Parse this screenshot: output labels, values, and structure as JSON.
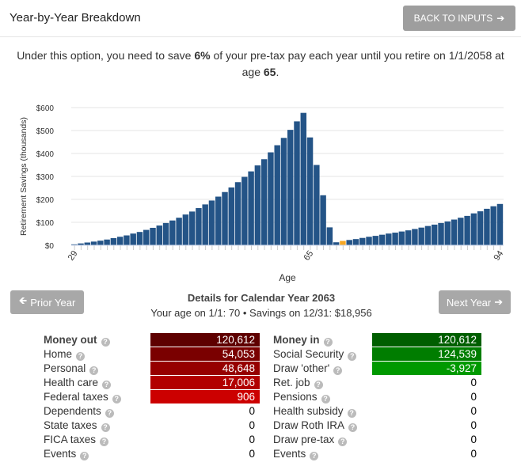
{
  "header": {
    "title": "Year-by-Year Breakdown",
    "back_label": "BACK TO INPUTS"
  },
  "intro": {
    "pre": "Under this option, you need to save ",
    "pct": "6%",
    "mid": " of your pre-tax pay each year until you retire on 1/1/2058 at age ",
    "age": "65",
    "end": "."
  },
  "chart_data": {
    "type": "bar",
    "ylabel": "Retirement Savings (thousands)",
    "xlabel": "Age",
    "ylim": [
      0,
      600
    ],
    "yticks": [
      "$0",
      "$100",
      "$200",
      "$300",
      "$400",
      "$500",
      "$600"
    ],
    "xticks": [
      "29",
      "65",
      "94"
    ],
    "x_start": 29,
    "highlight_age": 70,
    "colors": {
      "bar": "#245487",
      "highlight": "#f5a623"
    },
    "values": [
      4,
      8,
      12,
      16,
      20,
      25,
      31,
      37,
      43,
      51,
      58,
      67,
      76,
      86,
      97,
      108,
      120,
      134,
      147,
      162,
      178,
      195,
      212,
      232,
      252,
      275,
      298,
      322,
      348,
      375,
      405,
      436,
      468,
      503,
      540,
      577,
      470,
      350,
      218,
      78,
      13,
      19,
      23,
      27,
      32,
      37,
      41,
      46,
      51,
      55,
      60,
      65,
      71,
      77,
      84,
      90,
      97,
      104,
      112,
      120,
      128,
      139,
      148,
      159,
      170,
      180
    ]
  },
  "nav": {
    "prior": "Prior Year",
    "next": "Next Year"
  },
  "details": {
    "title": "Details for Calendar Year 2063",
    "subtitle": "Your age on 1/1: 70 • Savings on 12/31: $18,956"
  },
  "money_out": [
    {
      "label": "Money out",
      "value": "120,612",
      "color": "#5e0000",
      "bold": true
    },
    {
      "label": "Home",
      "value": "54,053",
      "color": "#7a0000"
    },
    {
      "label": "Personal",
      "value": "48,648",
      "color": "#960000"
    },
    {
      "label": "Health care",
      "value": "17,006",
      "color": "#b20000"
    },
    {
      "label": "Federal taxes",
      "value": "906",
      "color": "#cc0000"
    },
    {
      "label": "Dependents",
      "value": "0"
    },
    {
      "label": "State taxes",
      "value": "0"
    },
    {
      "label": "FICA taxes",
      "value": "0"
    },
    {
      "label": "Events",
      "value": "0"
    }
  ],
  "money_in": [
    {
      "label": "Money in",
      "value": "120,612",
      "color": "#005e00",
      "bold": true
    },
    {
      "label": "Social Security",
      "value": "124,539",
      "color": "#007d00"
    },
    {
      "label": "Draw 'other'",
      "value": "-3,927",
      "color": "#009900"
    },
    {
      "label": "Ret. job",
      "value": "0"
    },
    {
      "label": "Pensions",
      "value": "0"
    },
    {
      "label": "Health subsidy",
      "value": "0"
    },
    {
      "label": "Draw Roth IRA",
      "value": "0"
    },
    {
      "label": "Draw pre-tax",
      "value": "0"
    },
    {
      "label": "Events",
      "value": "0"
    }
  ]
}
